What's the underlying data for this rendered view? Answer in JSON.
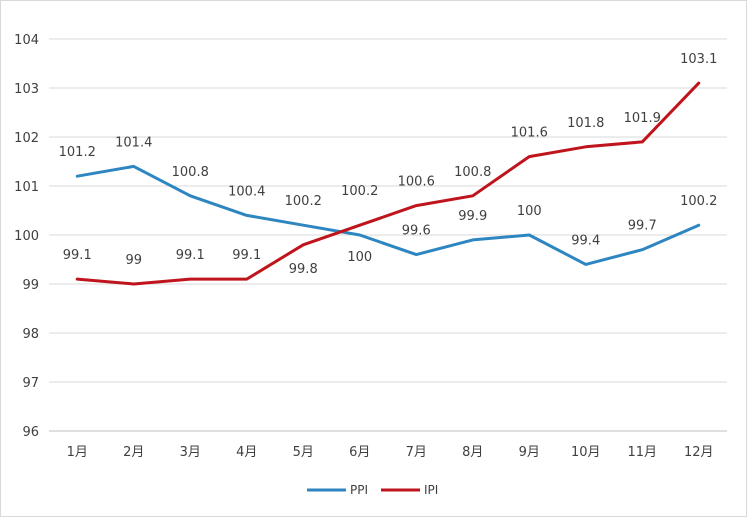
{
  "chart_data": {
    "type": "line",
    "title": "",
    "xlabel": "",
    "ylabel": "",
    "ylim": [
      96,
      104
    ],
    "yticks": [
      96,
      97,
      98,
      99,
      100,
      101,
      102,
      103,
      104
    ],
    "grid": true,
    "legend_position": "bottom",
    "categories": [
      "1月",
      "2月",
      "3月",
      "4月",
      "5月",
      "6月",
      "7月",
      "8月",
      "9月",
      "10月",
      "11月",
      "12月"
    ],
    "series": [
      {
        "name": "PPI",
        "color": "#2e86c1",
        "values": [
          101.2,
          101.4,
          100.8,
          100.4,
          100.2,
          100,
          99.6,
          99.9,
          100,
          99.4,
          99.7,
          100.2
        ],
        "labels": [
          "101.2",
          "101.4",
          "100.8",
          "100.4",
          "100.2",
          "100",
          "99.6",
          "99.9",
          "100",
          "99.4",
          "99.7",
          "100.2"
        ]
      },
      {
        "name": "IPI",
        "color": "#c0141c",
        "values": [
          99.1,
          99,
          99.1,
          99.1,
          99.8,
          100.2,
          100.6,
          100.8,
          101.6,
          101.8,
          101.9,
          103.1
        ],
        "labels": [
          "99.1",
          "99",
          "99.1",
          "99.1",
          "99.8",
          "100.2",
          "100.6",
          "100.8",
          "101.6",
          "101.8",
          "101.9",
          "103.1"
        ]
      }
    ]
  }
}
